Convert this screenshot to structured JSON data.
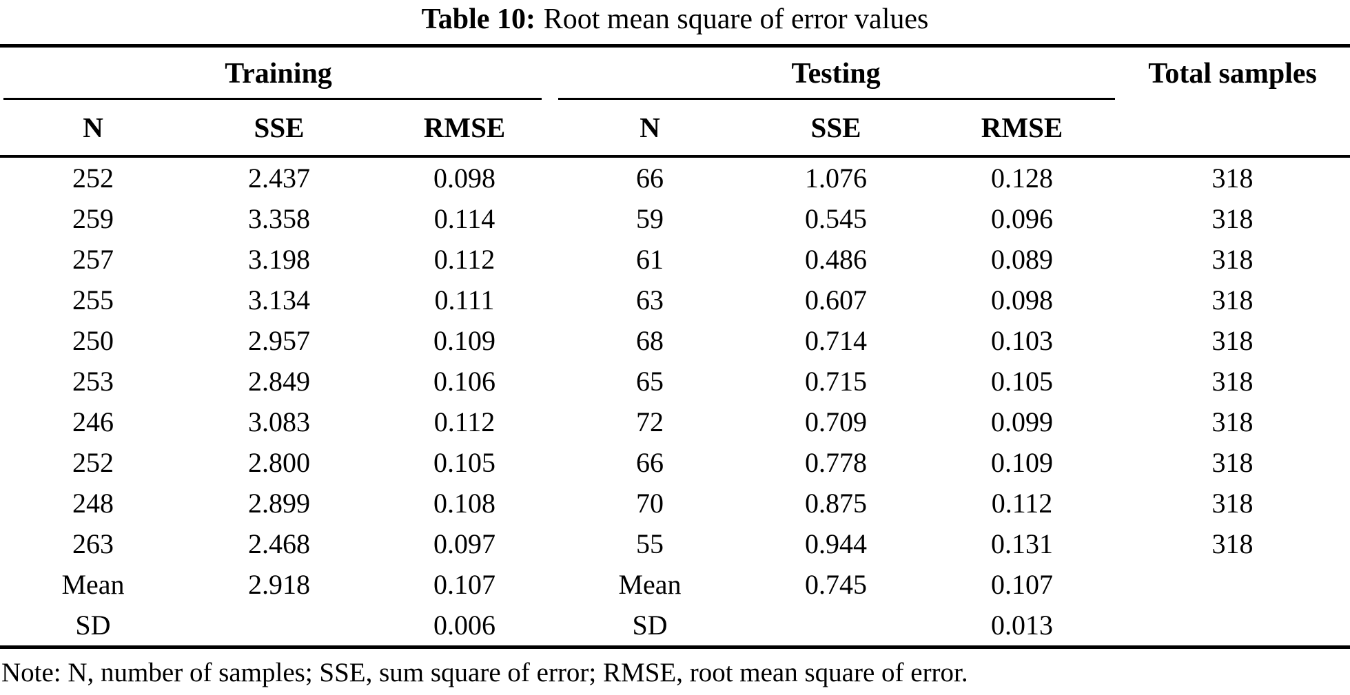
{
  "caption": {
    "label": "Table 10:",
    "text": "Root mean square of error values"
  },
  "table": {
    "group_headers": [
      "Training",
      "Testing",
      "Total samples"
    ],
    "column_headers": [
      "N",
      "SSE",
      "RMSE",
      "N",
      "SSE",
      "RMSE"
    ],
    "rows": [
      [
        "252",
        "2.437",
        "0.098",
        "66",
        "1.076",
        "0.128",
        "318"
      ],
      [
        "259",
        "3.358",
        "0.114",
        "59",
        "0.545",
        "0.096",
        "318"
      ],
      [
        "257",
        "3.198",
        "0.112",
        "61",
        "0.486",
        "0.089",
        "318"
      ],
      [
        "255",
        "3.134",
        "0.111",
        "63",
        "0.607",
        "0.098",
        "318"
      ],
      [
        "250",
        "2.957",
        "0.109",
        "68",
        "0.714",
        "0.103",
        "318"
      ],
      [
        "253",
        "2.849",
        "0.106",
        "65",
        "0.715",
        "0.105",
        "318"
      ],
      [
        "246",
        "3.083",
        "0.112",
        "72",
        "0.709",
        "0.099",
        "318"
      ],
      [
        "252",
        "2.800",
        "0.105",
        "66",
        "0.778",
        "0.109",
        "318"
      ],
      [
        "248",
        "2.899",
        "0.108",
        "70",
        "0.875",
        "0.112",
        "318"
      ],
      [
        "263",
        "2.468",
        "0.097",
        "55",
        "0.944",
        "0.131",
        "318"
      ],
      [
        "Mean",
        "2.918",
        "0.107",
        "Mean",
        "0.745",
        "0.107",
        ""
      ],
      [
        "SD",
        "",
        "0.006",
        "SD",
        "",
        "0.013",
        ""
      ]
    ]
  },
  "note": "Note: N, number of samples; SSE, sum square of error; RMSE, root mean square of error.",
  "colors": {
    "text": "#000000",
    "background": "#ffffff",
    "rule": "#000000"
  }
}
